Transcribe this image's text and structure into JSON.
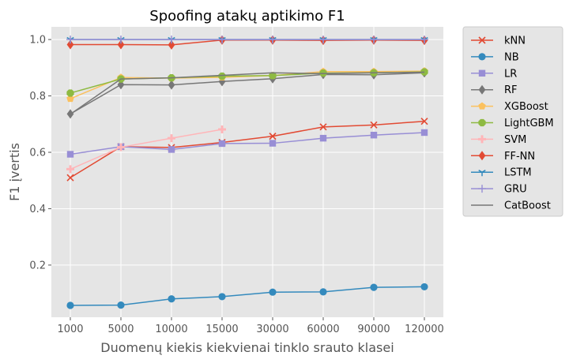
{
  "chart_data": {
    "type": "line",
    "title": "Spoofing atakų aptikimo F1",
    "xlabel": "Duomenų kiekis kiekvienai tinklo srauto klasei",
    "ylabel": "F1 įvertis",
    "categories": [
      "1000",
      "5000",
      "10000",
      "15000",
      "30000",
      "60000",
      "90000",
      "120000"
    ],
    "ylim": [
      0.015,
      1.045
    ],
    "yticks": [
      0.2,
      0.4,
      0.6,
      0.8,
      1.0
    ],
    "ytick_labels": [
      "0.2",
      "0.4",
      "0.6",
      "0.8",
      "1.0"
    ],
    "grid": true,
    "legend_position": "outside-right",
    "background": "#e5e5e5",
    "series": [
      {
        "name": "kNN",
        "color": "#e24a33",
        "marker": "x",
        "values": [
          0.51,
          0.62,
          0.617,
          0.635,
          0.657,
          0.69,
          0.697,
          0.71
        ]
      },
      {
        "name": "NB",
        "color": "#348abd",
        "marker": "circle",
        "values": [
          0.057,
          0.058,
          0.08,
          0.088,
          0.104,
          0.105,
          0.121,
          0.123
        ]
      },
      {
        "name": "LR",
        "color": "#988ed5",
        "marker": "square",
        "values": [
          0.593,
          0.62,
          0.61,
          0.631,
          0.632,
          0.65,
          0.661,
          0.67
        ]
      },
      {
        "name": "RF",
        "color": "#777777",
        "marker": "diamond",
        "values": [
          0.736,
          0.84,
          0.839,
          0.851,
          0.861,
          0.876,
          0.875,
          0.882
        ]
      },
      {
        "name": "XGBoost",
        "color": "#fbc15e",
        "marker": "pentagon",
        "values": [
          0.79,
          0.865,
          0.863,
          0.866,
          0.872,
          0.886,
          0.886,
          0.888
        ]
      },
      {
        "name": "LightGBM",
        "color": "#8eba42",
        "marker": "octagon",
        "values": [
          0.81,
          0.86,
          0.864,
          0.87,
          0.872,
          0.881,
          0.882,
          0.885
        ]
      },
      {
        "name": "SVM",
        "color": "#ffb5b8",
        "marker": "plus",
        "values": [
          0.54,
          0.618,
          0.65,
          0.681,
          null,
          null,
          null,
          null
        ]
      },
      {
        "name": "FF-NN",
        "color": "#e24a33",
        "marker": "diamond",
        "values": [
          0.982,
          0.982,
          0.981,
          0.998,
          0.998,
          0.997,
          0.998,
          0.997
        ]
      },
      {
        "name": "LSTM",
        "color": "#348abd",
        "marker": "tri",
        "values": [
          1.0,
          1.0,
          1.0,
          1.0,
          1.0,
          1.0,
          1.0,
          1.0
        ]
      },
      {
        "name": "GRU",
        "color": "#988ed5",
        "marker": "thinplus",
        "values": [
          1.0,
          1.0,
          1.0,
          1.0,
          1.0,
          1.0,
          1.0,
          1.0
        ]
      },
      {
        "name": "CatBoost",
        "color": "#777777",
        "marker": "none",
        "values": [
          0.735,
          0.86,
          0.864,
          0.873,
          0.882,
          0.879,
          0.882,
          0.884
        ]
      }
    ]
  }
}
